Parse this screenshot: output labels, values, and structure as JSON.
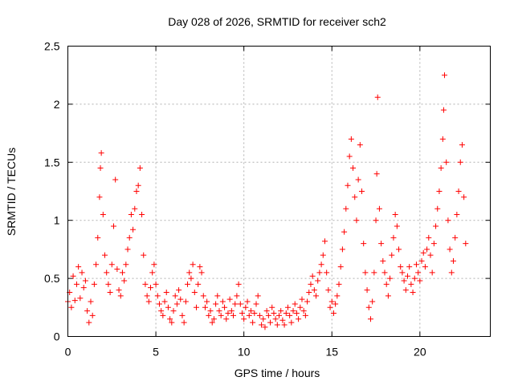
{
  "chart_data": {
    "type": "scatter",
    "title": "Day 028 of 2026, SRMTID for receiver sch2",
    "xlabel": "GPS time / hours",
    "ylabel": "SRMTID / TECUs",
    "xlim": [
      0,
      24
    ],
    "ylim": [
      0,
      2.5
    ],
    "xticks": [
      0,
      5,
      10,
      15,
      20
    ],
    "yticks": [
      0,
      0.5,
      1,
      1.5,
      2,
      2.5
    ],
    "grid": true,
    "marker": "+",
    "marker_color": "#ff0000",
    "series": [
      {
        "name": "sch2",
        "points": [
          [
            0.0,
            0.3
          ],
          [
            0.1,
            0.38
          ],
          [
            0.2,
            0.25
          ],
          [
            0.3,
            0.52
          ],
          [
            0.4,
            0.31
          ],
          [
            0.5,
            0.45
          ],
          [
            0.6,
            0.6
          ],
          [
            0.7,
            0.33
          ],
          [
            0.8,
            0.55
          ],
          [
            0.9,
            0.42
          ],
          [
            1.0,
            0.48
          ],
          [
            1.1,
            0.22
          ],
          [
            1.2,
            0.12
          ],
          [
            1.3,
            0.3
          ],
          [
            1.4,
            0.18
          ],
          [
            1.5,
            0.45
          ],
          [
            1.6,
            0.62
          ],
          [
            1.7,
            0.85
          ],
          [
            1.8,
            1.2
          ],
          [
            1.85,
            1.45
          ],
          [
            1.9,
            1.58
          ],
          [
            2.0,
            1.05
          ],
          [
            2.1,
            0.7
          ],
          [
            2.2,
            0.55
          ],
          [
            2.3,
            0.45
          ],
          [
            2.4,
            0.38
          ],
          [
            2.5,
            0.62
          ],
          [
            2.6,
            0.95
          ],
          [
            2.7,
            1.35
          ],
          [
            2.8,
            0.58
          ],
          [
            2.9,
            0.4
          ],
          [
            3.0,
            0.35
          ],
          [
            3.1,
            0.55
          ],
          [
            3.2,
            0.48
          ],
          [
            3.3,
            0.62
          ],
          [
            3.4,
            0.75
          ],
          [
            3.5,
            0.85
          ],
          [
            3.6,
            1.05
          ],
          [
            3.7,
            0.92
          ],
          [
            3.8,
            1.1
          ],
          [
            3.9,
            1.25
          ],
          [
            4.0,
            1.3
          ],
          [
            4.1,
            1.45
          ],
          [
            4.2,
            1.05
          ],
          [
            4.3,
            0.7
          ],
          [
            4.4,
            0.45
          ],
          [
            4.5,
            0.35
          ],
          [
            4.6,
            0.3
          ],
          [
            4.7,
            0.42
          ],
          [
            4.8,
            0.55
          ],
          [
            4.9,
            0.62
          ],
          [
            5.0,
            0.45
          ],
          [
            5.1,
            0.35
          ],
          [
            5.2,
            0.28
          ],
          [
            5.3,
            0.22
          ],
          [
            5.4,
            0.18
          ],
          [
            5.5,
            0.3
          ],
          [
            5.6,
            0.38
          ],
          [
            5.7,
            0.25
          ],
          [
            5.8,
            0.15
          ],
          [
            5.9,
            0.12
          ],
          [
            6.0,
            0.22
          ],
          [
            6.1,
            0.35
          ],
          [
            6.2,
            0.28
          ],
          [
            6.3,
            0.4
          ],
          [
            6.4,
            0.32
          ],
          [
            6.5,
            0.18
          ],
          [
            6.6,
            0.12
          ],
          [
            6.7,
            0.3
          ],
          [
            6.8,
            0.45
          ],
          [
            6.9,
            0.55
          ],
          [
            7.0,
            0.5
          ],
          [
            7.1,
            0.62
          ],
          [
            7.2,
            0.38
          ],
          [
            7.3,
            0.25
          ],
          [
            7.4,
            0.45
          ],
          [
            7.5,
            0.6
          ],
          [
            7.6,
            0.55
          ],
          [
            7.7,
            0.35
          ],
          [
            7.8,
            0.25
          ],
          [
            7.9,
            0.3
          ],
          [
            8.0,
            0.18
          ],
          [
            8.1,
            0.22
          ],
          [
            8.2,
            0.12
          ],
          [
            8.3,
            0.15
          ],
          [
            8.4,
            0.28
          ],
          [
            8.5,
            0.35
          ],
          [
            8.6,
            0.22
          ],
          [
            8.7,
            0.18
          ],
          [
            8.8,
            0.3
          ],
          [
            8.9,
            0.25
          ],
          [
            9.0,
            0.15
          ],
          [
            9.1,
            0.2
          ],
          [
            9.2,
            0.32
          ],
          [
            9.3,
            0.22
          ],
          [
            9.4,
            0.18
          ],
          [
            9.5,
            0.28
          ],
          [
            9.6,
            0.35
          ],
          [
            9.7,
            0.45
          ],
          [
            9.8,
            0.28
          ],
          [
            9.9,
            0.2
          ],
          [
            10.0,
            0.15
          ],
          [
            10.1,
            0.25
          ],
          [
            10.2,
            0.3
          ],
          [
            10.3,
            0.18
          ],
          [
            10.4,
            0.22
          ],
          [
            10.5,
            0.12
          ],
          [
            10.6,
            0.2
          ],
          [
            10.7,
            0.28
          ],
          [
            10.8,
            0.35
          ],
          [
            10.9,
            0.18
          ],
          [
            11.0,
            0.1
          ],
          [
            11.1,
            0.15
          ],
          [
            11.2,
            0.08
          ],
          [
            11.3,
            0.22
          ],
          [
            11.4,
            0.18
          ],
          [
            11.5,
            0.12
          ],
          [
            11.6,
            0.25
          ],
          [
            11.7,
            0.2
          ],
          [
            11.8,
            0.15
          ],
          [
            11.9,
            0.1
          ],
          [
            12.0,
            0.18
          ],
          [
            12.1,
            0.22
          ],
          [
            12.2,
            0.14
          ],
          [
            12.3,
            0.1
          ],
          [
            12.4,
            0.2
          ],
          [
            12.5,
            0.25
          ],
          [
            12.6,
            0.18
          ],
          [
            12.7,
            0.12
          ],
          [
            12.8,
            0.22
          ],
          [
            12.9,
            0.28
          ],
          [
            13.0,
            0.2
          ],
          [
            13.1,
            0.15
          ],
          [
            13.2,
            0.25
          ],
          [
            13.3,
            0.32
          ],
          [
            13.4,
            0.22
          ],
          [
            13.5,
            0.18
          ],
          [
            13.6,
            0.3
          ],
          [
            13.7,
            0.38
          ],
          [
            13.8,
            0.45
          ],
          [
            13.9,
            0.52
          ],
          [
            14.0,
            0.4
          ],
          [
            14.1,
            0.35
          ],
          [
            14.2,
            0.48
          ],
          [
            14.3,
            0.55
          ],
          [
            14.4,
            0.62
          ],
          [
            14.5,
            0.7
          ],
          [
            14.6,
            0.82
          ],
          [
            14.7,
            0.55
          ],
          [
            14.8,
            0.4
          ],
          [
            14.9,
            0.25
          ],
          [
            15.0,
            0.3
          ],
          [
            15.1,
            0.2
          ],
          [
            15.2,
            0.28
          ],
          [
            15.3,
            0.35
          ],
          [
            15.4,
            0.45
          ],
          [
            15.5,
            0.6
          ],
          [
            15.6,
            0.75
          ],
          [
            15.7,
            0.9
          ],
          [
            15.8,
            1.1
          ],
          [
            15.9,
            1.3
          ],
          [
            16.0,
            1.55
          ],
          [
            16.1,
            1.7
          ],
          [
            16.2,
            1.45
          ],
          [
            16.3,
            1.2
          ],
          [
            16.4,
            1.0
          ],
          [
            16.5,
            1.35
          ],
          [
            16.6,
            1.65
          ],
          [
            16.7,
            1.25
          ],
          [
            16.8,
            0.8
          ],
          [
            16.9,
            0.55
          ],
          [
            17.0,
            0.4
          ],
          [
            17.1,
            0.25
          ],
          [
            17.2,
            0.15
          ],
          [
            17.3,
            0.3
          ],
          [
            17.4,
            0.55
          ],
          [
            17.5,
            1.0
          ],
          [
            17.55,
            1.4
          ],
          [
            17.6,
            2.06
          ],
          [
            17.7,
            1.1
          ],
          [
            17.8,
            0.8
          ],
          [
            17.9,
            0.65
          ],
          [
            18.0,
            0.55
          ],
          [
            18.1,
            0.45
          ],
          [
            18.2,
            0.35
          ],
          [
            18.3,
            0.5
          ],
          [
            18.4,
            0.7
          ],
          [
            18.5,
            0.85
          ],
          [
            18.6,
            1.05
          ],
          [
            18.7,
            0.95
          ],
          [
            18.8,
            0.75
          ],
          [
            18.9,
            0.6
          ],
          [
            19.0,
            0.55
          ],
          [
            19.1,
            0.48
          ],
          [
            19.2,
            0.4
          ],
          [
            19.3,
            0.52
          ],
          [
            19.4,
            0.6
          ],
          [
            19.5,
            0.45
          ],
          [
            19.6,
            0.38
          ],
          [
            19.7,
            0.5
          ],
          [
            19.8,
            0.62
          ],
          [
            19.9,
            0.55
          ],
          [
            20.0,
            0.48
          ],
          [
            20.1,
            0.65
          ],
          [
            20.2,
            0.72
          ],
          [
            20.3,
            0.6
          ],
          [
            20.4,
            0.75
          ],
          [
            20.5,
            0.85
          ],
          [
            20.6,
            0.7
          ],
          [
            20.7,
            0.55
          ],
          [
            20.8,
            0.8
          ],
          [
            20.9,
            0.95
          ],
          [
            21.0,
            1.1
          ],
          [
            21.1,
            1.25
          ],
          [
            21.2,
            1.45
          ],
          [
            21.3,
            1.7
          ],
          [
            21.35,
            1.95
          ],
          [
            21.4,
            2.25
          ],
          [
            21.5,
            1.5
          ],
          [
            21.6,
            1.0
          ],
          [
            21.7,
            0.75
          ],
          [
            21.8,
            0.55
          ],
          [
            21.9,
            0.65
          ],
          [
            22.0,
            0.85
          ],
          [
            22.1,
            1.05
          ],
          [
            22.2,
            1.25
          ],
          [
            22.3,
            1.5
          ],
          [
            22.4,
            1.65
          ],
          [
            22.5,
            1.2
          ],
          [
            22.6,
            0.8
          ]
        ]
      }
    ]
  }
}
